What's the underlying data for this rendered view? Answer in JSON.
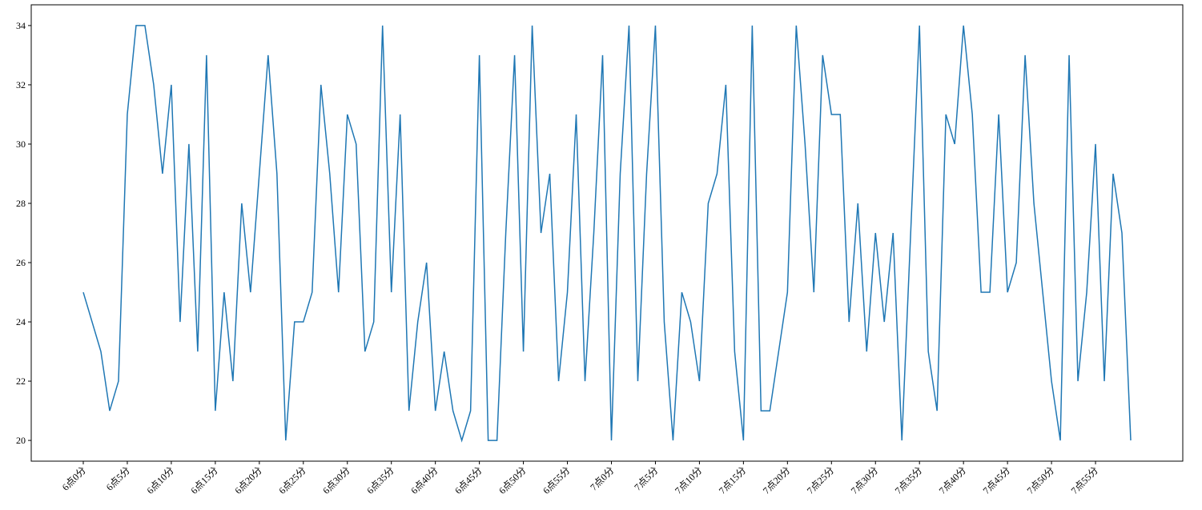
{
  "chart_data": {
    "type": "line",
    "categories": [
      "6点0分",
      null,
      null,
      null,
      null,
      "6点5分",
      null,
      null,
      null,
      null,
      "6点10分",
      null,
      null,
      null,
      null,
      "6点15分",
      null,
      null,
      null,
      null,
      "6点20分",
      null,
      null,
      null,
      null,
      "6点25分",
      null,
      null,
      null,
      null,
      "6点30分",
      null,
      null,
      null,
      null,
      "6点35分",
      null,
      null,
      null,
      null,
      "6点40分",
      null,
      null,
      null,
      null,
      "6点45分",
      null,
      null,
      null,
      null,
      "6点50分",
      null,
      null,
      null,
      null,
      "6点55分",
      null,
      null,
      null,
      null,
      "7点0分",
      null,
      null,
      null,
      null,
      "7点5分",
      null,
      null,
      null,
      null,
      "7点10分",
      null,
      null,
      null,
      null,
      "7点15分",
      null,
      null,
      null,
      null,
      "7点20分",
      null,
      null,
      null,
      null,
      "7点25分",
      null,
      null,
      null,
      null,
      "7点30分",
      null,
      null,
      null,
      null,
      "7点35分",
      null,
      null,
      null,
      null,
      "7点40分",
      null,
      null,
      null,
      null,
      "7点45分",
      null,
      null,
      null,
      null,
      "7点50分",
      null,
      null,
      null,
      null,
      "7点55分",
      null,
      null,
      null,
      null
    ],
    "series": [
      {
        "color": "#1f77b4",
        "values": [
          25,
          24,
          23,
          21,
          22,
          31,
          34,
          34,
          32,
          29,
          32,
          24,
          30,
          23,
          33,
          21,
          25,
          22,
          28,
          25,
          29,
          33,
          29,
          20,
          24,
          24,
          25,
          32,
          29,
          25,
          31,
          30,
          23,
          24,
          34,
          25,
          31,
          21,
          24,
          26,
          21,
          23,
          21,
          20,
          21,
          33,
          20,
          20,
          27,
          33,
          23,
          34,
          27,
          29,
          22,
          25,
          31,
          22,
          27,
          33,
          20,
          29,
          34,
          22,
          29,
          34,
          24,
          20,
          25,
          24,
          22,
          28,
          29,
          32,
          23,
          20,
          34,
          21,
          21,
          23,
          25,
          34,
          30,
          25,
          33,
          31,
          31,
          24,
          28,
          23,
          27,
          24,
          27,
          20,
          27,
          34,
          23,
          21,
          31,
          30,
          34,
          31,
          25,
          25,
          31,
          25,
          26,
          33,
          28,
          25,
          22,
          20,
          33,
          22,
          25,
          30,
          22,
          29,
          27,
          20
        ]
      }
    ],
    "ylim": [
      19.3,
      34.7
    ],
    "yticks": [
      20,
      22,
      24,
      26,
      28,
      30,
      32,
      34
    ]
  }
}
